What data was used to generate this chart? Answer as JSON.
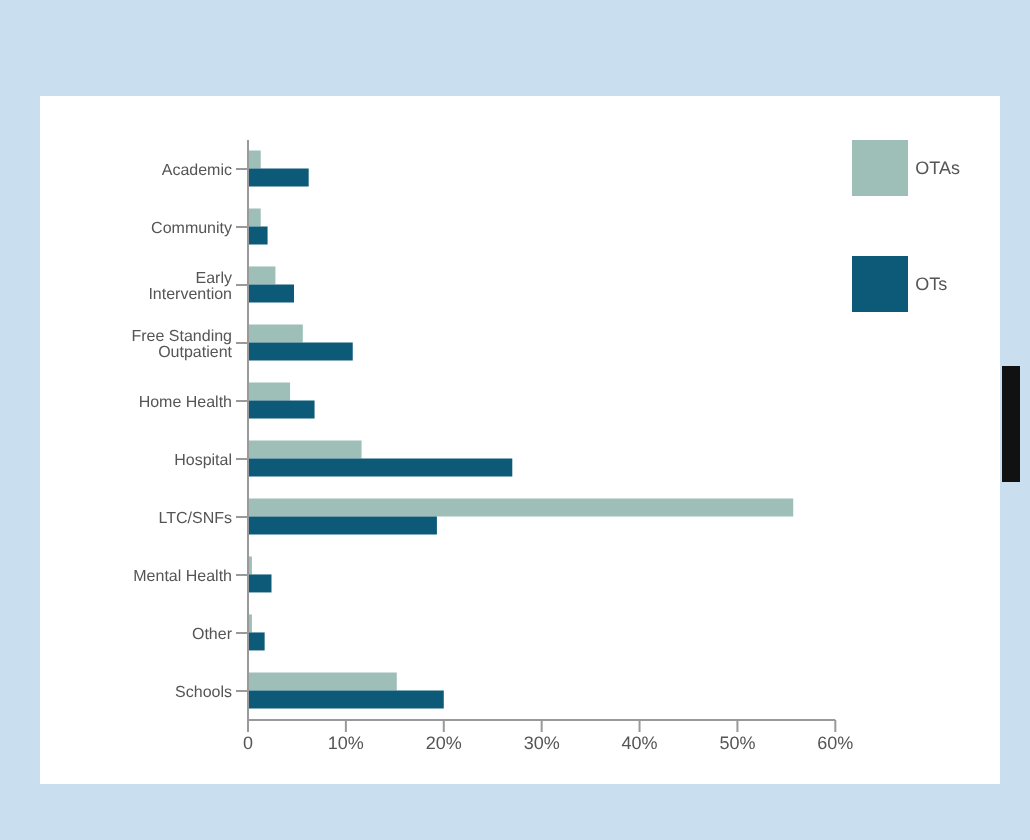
{
  "chart_data": {
    "type": "bar",
    "orientation": "horizontal",
    "categories": [
      "Academic",
      "Community",
      "Early Intervention",
      "Free Standing Outpatient",
      "Home Health",
      "Hospital",
      "LTC/SNFs",
      "Mental Health",
      "Other",
      "Schools"
    ],
    "series": [
      {
        "name": "OTAs",
        "color": "#9dbfb8",
        "values": [
          1.3,
          1.3,
          2.8,
          5.6,
          4.3,
          11.6,
          55.7,
          0.4,
          0.4,
          15.2
        ]
      },
      {
        "name": "OTs",
        "color": "#0d5a78",
        "values": [
          6.2,
          2.0,
          4.7,
          10.7,
          6.8,
          27,
          19.3,
          2.4,
          1.7,
          20
        ]
      }
    ],
    "xlim": [
      0,
      60
    ],
    "xticks": [
      0,
      {
        "value": 10,
        "label": "10%"
      },
      {
        "value": 20,
        "label": "20%"
      },
      {
        "value": 30,
        "label": "30%"
      },
      {
        "value": 40,
        "label": "40%"
      },
      {
        "value": 50,
        "label": "50%"
      },
      {
        "value": 60,
        "label": "60%"
      }
    ],
    "legend": "right"
  }
}
